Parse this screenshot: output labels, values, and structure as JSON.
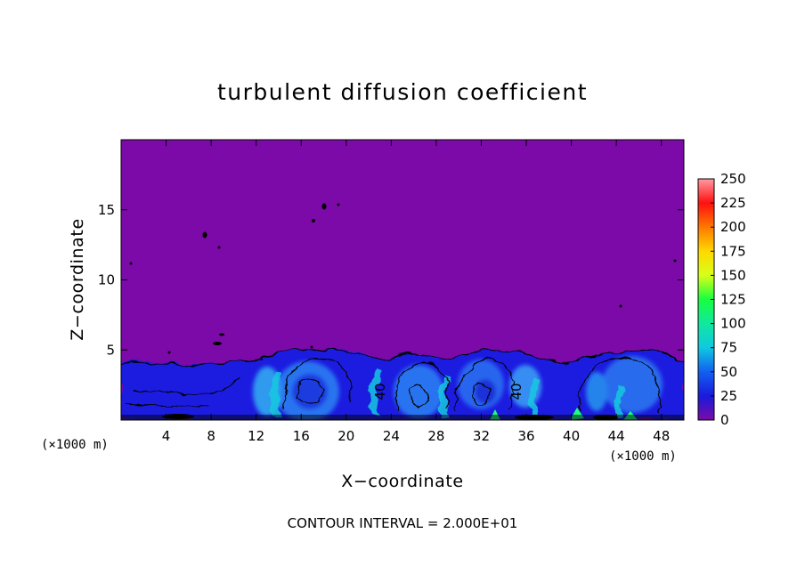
{
  "chart_data": {
    "type": "heatmap",
    "title": "turbulent diffusion coefficient",
    "xlabel": "X−coordinate",
    "ylabel": "Z−coordinate",
    "x_unit_label": "(×1000 m)",
    "x_unit_label_right": "(×1000 m)",
    "xlim": [
      0,
      50
    ],
    "ylim": [
      0,
      20
    ],
    "x_ticks": [
      4,
      8,
      12,
      16,
      20,
      24,
      28,
      32,
      36,
      40,
      44,
      48
    ],
    "y_ticks": [
      5,
      10,
      15
    ],
    "colorbar": {
      "min": 0,
      "max": 250,
      "ticks": [
        0,
        25,
        50,
        75,
        100,
        125,
        150,
        175,
        200,
        225,
        250
      ],
      "colors": [
        "#7b0aa8",
        "#1a1add",
        "#1260f0",
        "#10c8e0",
        "#10e8a0",
        "#18ff40",
        "#d8ff18",
        "#ffd800",
        "#ff7800",
        "#ff1010",
        "#ff9aa0"
      ]
    },
    "background_value": 0,
    "boundary_layer_top_km": 5.2,
    "in_plot_contour_labels": [
      "40",
      "40"
    ],
    "contour_interval_text": "CONTOUR INTERVAL = 2.000E+01",
    "grid": false,
    "legend": "right"
  }
}
